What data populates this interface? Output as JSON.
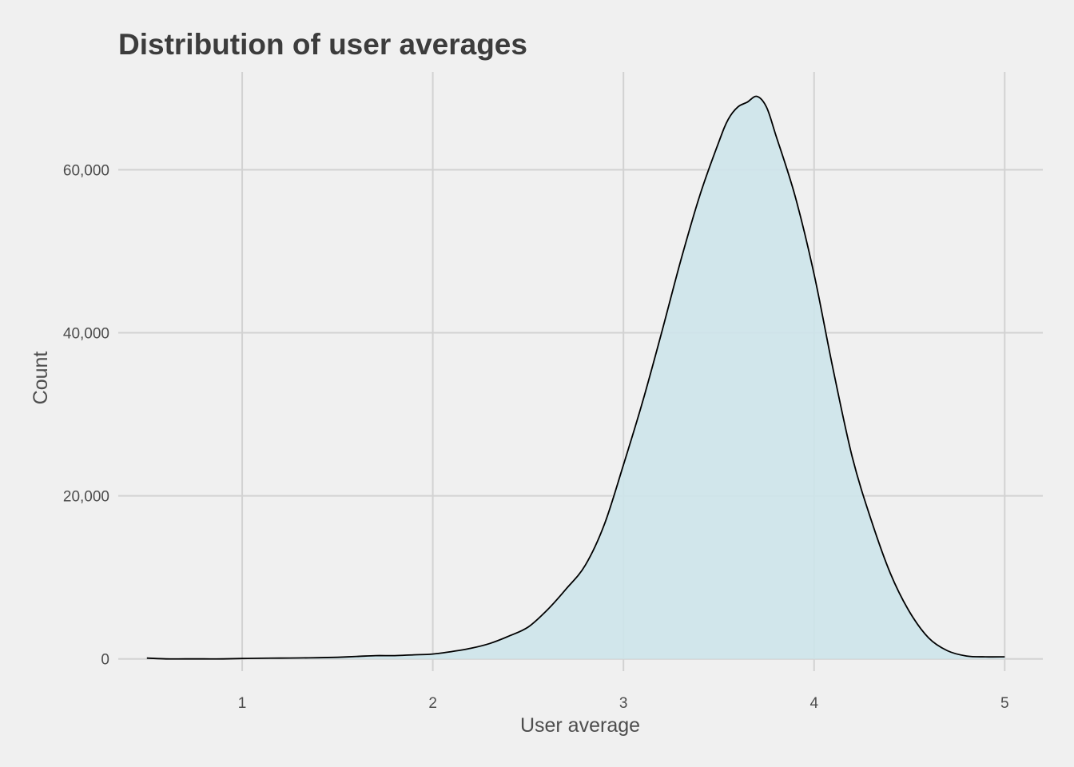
{
  "chart_data": {
    "type": "area",
    "title": "Distribution of user averages",
    "xlabel": "User average",
    "ylabel": "Count",
    "xlim": [
      0.35,
      5.2
    ],
    "ylim": [
      -1500,
      72000
    ],
    "x_ticks": [
      {
        "value": 1,
        "label": "1"
      },
      {
        "value": 2,
        "label": "2"
      },
      {
        "value": 3,
        "label": "3"
      },
      {
        "value": 4,
        "label": "4"
      },
      {
        "value": 5,
        "label": "5"
      }
    ],
    "y_ticks": [
      {
        "value": 0,
        "label": "0"
      },
      {
        "value": 20000,
        "label": "20,000"
      },
      {
        "value": 40000,
        "label": "40,000"
      },
      {
        "value": 60000,
        "label": "60,000"
      }
    ],
    "grid": true,
    "fill_color": "#cde4ea",
    "line_color": "#000000",
    "x": [
      0.5,
      0.6,
      0.7,
      0.8,
      0.9,
      1.0,
      1.1,
      1.2,
      1.3,
      1.4,
      1.5,
      1.6,
      1.7,
      1.8,
      1.9,
      2.0,
      2.1,
      2.2,
      2.3,
      2.4,
      2.5,
      2.6,
      2.7,
      2.8,
      2.9,
      3.0,
      3.1,
      3.2,
      3.3,
      3.4,
      3.5,
      3.55,
      3.6,
      3.65,
      3.7,
      3.75,
      3.8,
      3.9,
      4.0,
      4.1,
      4.2,
      4.3,
      4.4,
      4.5,
      4.6,
      4.7,
      4.8,
      4.9,
      5.0
    ],
    "y": [
      100,
      0,
      0,
      0,
      0,
      50,
      80,
      100,
      120,
      150,
      200,
      300,
      400,
      400,
      500,
      600,
      900,
      1300,
      1900,
      2800,
      3900,
      6000,
      8600,
      11500,
      16500,
      23800,
      31500,
      40000,
      48800,
      56800,
      63400,
      66200,
      67700,
      68300,
      69000,
      67700,
      64200,
      56800,
      47200,
      35500,
      24800,
      17000,
      10500,
      5800,
      2600,
      1000,
      350,
      250,
      250
    ]
  }
}
